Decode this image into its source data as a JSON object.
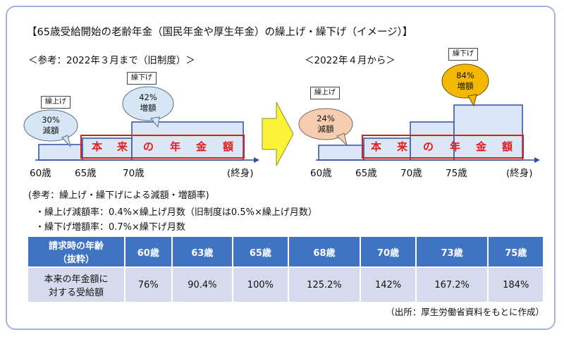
{
  "title": "【65歳受給開始の老齢年金（国民年金や厚生年金）の繰上げ・繰下げ（イメージ）】",
  "left_diagram": {
    "heading": "＜参考：2022年３月まで（旧制度）＞",
    "kuriage_label": "繰上げ",
    "kuriage_rate": "30%",
    "kuriage_word": "減額",
    "kurisage_label": "繰下げ",
    "kurisage_rate": "42%",
    "kurisage_word": "増額",
    "ages": [
      "60歳",
      "65歳",
      "70歳"
    ],
    "end_label": "(終身)",
    "honrai": [
      "本",
      "来",
      "の",
      "年",
      "金",
      "額"
    ]
  },
  "right_diagram": {
    "heading": "＜2022年４月から＞",
    "kuriage_label": "繰上げ",
    "kuriage_rate": "24%",
    "kuriage_word": "減額",
    "kurisage_label": "繰下げ",
    "kurisage_rate": "84%",
    "kurisage_word": "増額",
    "ages": [
      "60歳",
      "65歳",
      "70歳",
      "75歳"
    ],
    "end_label": "(終身)",
    "honrai": [
      "本",
      "来",
      "の",
      "年",
      "金",
      "額"
    ]
  },
  "colors": {
    "bar_fill": "#dbe7f6",
    "bar_stroke": "#2f4fa0",
    "red_frame": "#e31b1b",
    "bubble_blue": "#d6e6f4",
    "bubble_peach": "#f6cdb0",
    "bubble_gold": "#f5b800",
    "arrow_fill": "#fbf33a",
    "header_blue": "#3f74c3",
    "row_bg": "#d5dbec"
  },
  "notes": {
    "heading": "(参考：繰上げ・繰下げによる減額・増額率)",
    "line1": "・繰上げ減額率：0.4%×繰上げ月数（旧制度は0.5%×繰上げ月数）",
    "line2": "・繰下げ増額率：0.7%×繰下げ月数"
  },
  "table": {
    "header_label_1": "請求時の年齢",
    "header_label_2": "（抜粋）",
    "ages": [
      "60歳",
      "63歳",
      "65歳",
      "68歳",
      "70歳",
      "73歳",
      "75歳"
    ],
    "row_label_1": "本来の年金額に",
    "row_label_2": "対する受給額",
    "values": [
      "76%",
      "90.4%",
      "100%",
      "125.2%",
      "142%",
      "167.2%",
      "184%"
    ]
  },
  "source": "（出所：厚生労働省資料をもとに作成）"
}
